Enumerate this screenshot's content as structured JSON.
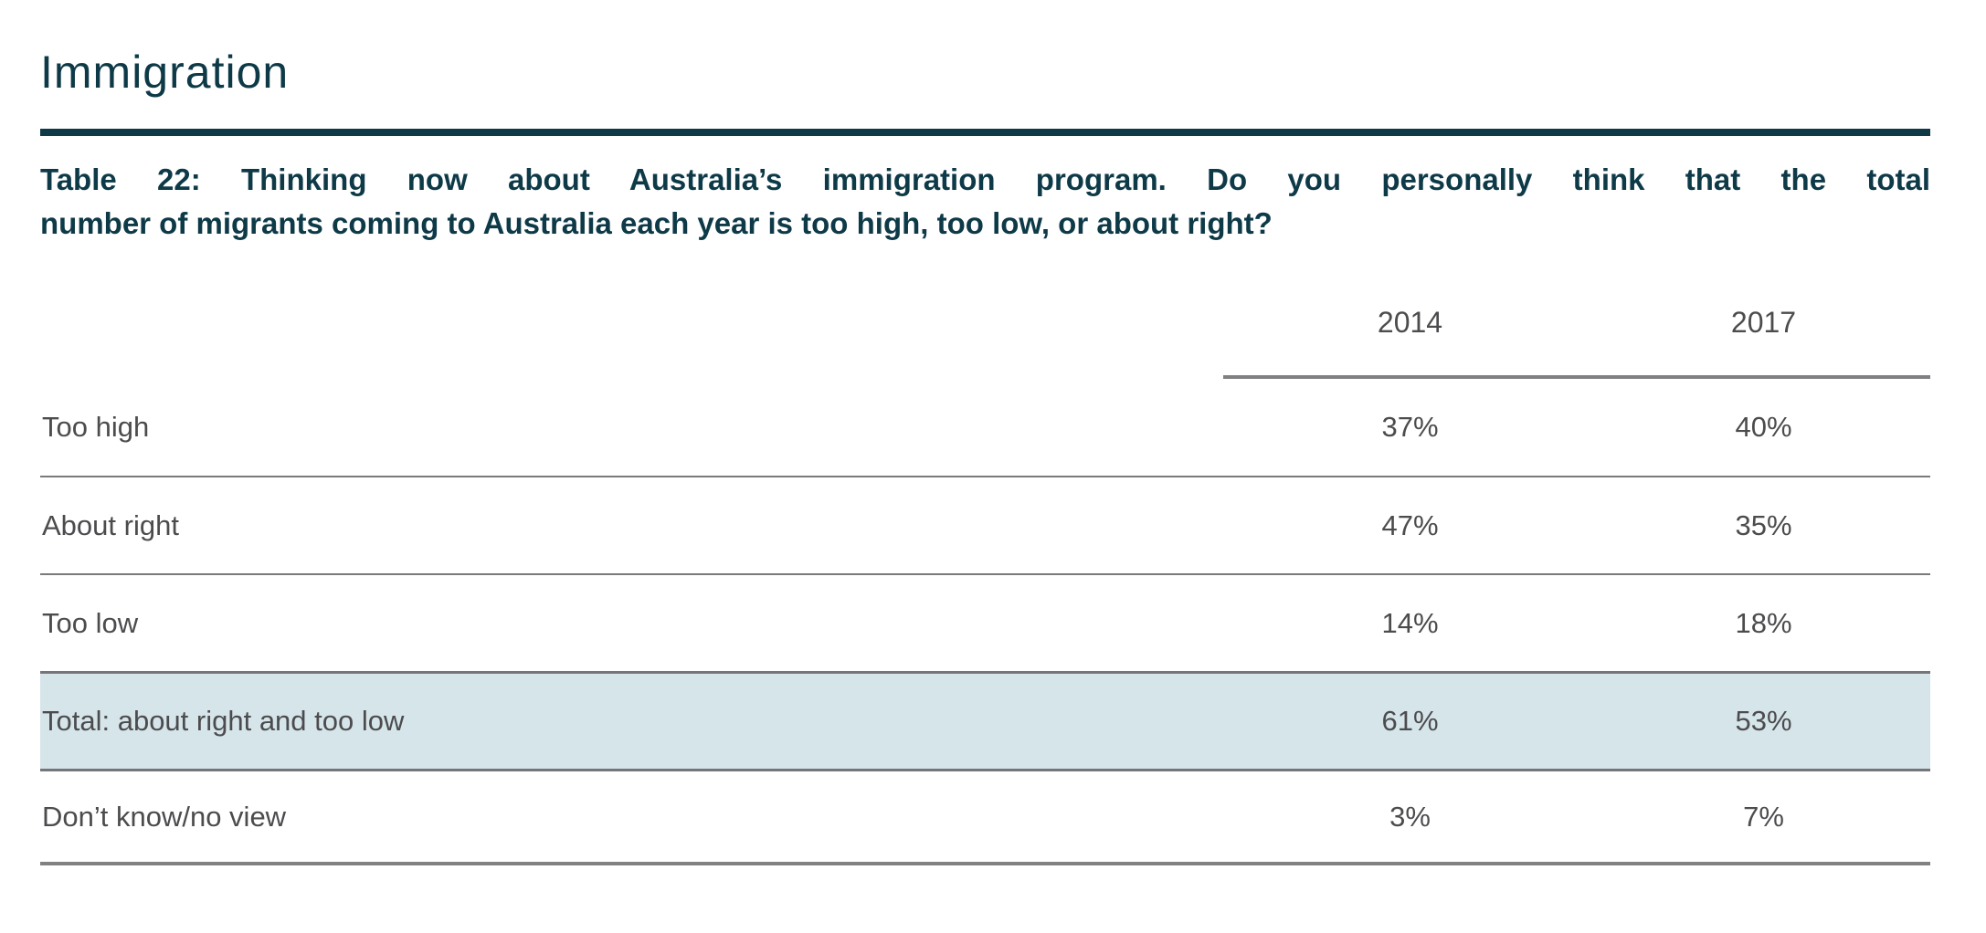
{
  "page": {
    "title": "Immigration",
    "accent_color": "#0e3a48",
    "highlight_color": "#d6e5ea"
  },
  "table": {
    "caption_full": "Table 22: Thinking now about Australia’s immigration program. Do you personally think that the total number of migrants coming to Australia each year is too high, too low, or about right?",
    "caption_lines": [
      "Table 22: Thinking now about Australia’s immigration program. Do you personally think that the total",
      "number of migrants coming to Australia each year is too high, too low, or about right?"
    ],
    "columns": [
      "2014",
      "2017"
    ],
    "rows": [
      {
        "label": "Too high",
        "values": [
          "37%",
          "40%"
        ],
        "highlight": false
      },
      {
        "label": "About right",
        "values": [
          "47%",
          "35%"
        ],
        "highlight": false
      },
      {
        "label": "Too low",
        "values": [
          "14%",
          "18%"
        ],
        "highlight": false
      },
      {
        "label": "Total: about right and too low",
        "values": [
          "61%",
          "53%"
        ],
        "highlight": true
      },
      {
        "label": "Don’t know/no view",
        "values": [
          "3%",
          "7%"
        ],
        "highlight": false
      }
    ]
  }
}
